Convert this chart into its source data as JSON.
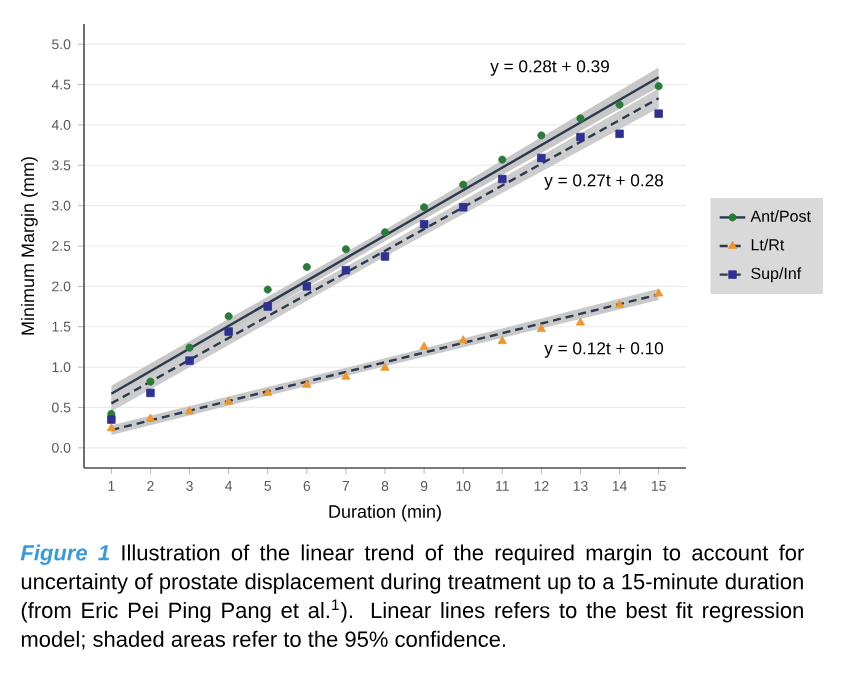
{
  "chart_data": {
    "type": "scatter",
    "xlabel": "Duration (min)",
    "ylabel": "Minimum Margin (mm)",
    "x": [
      1,
      2,
      3,
      4,
      5,
      6,
      7,
      8,
      9,
      10,
      11,
      12,
      13,
      14,
      15
    ],
    "series": [
      {
        "name": "Ant/Post",
        "marker": "circle",
        "color": "#2a7a3a",
        "values": [
          0.42,
          0.82,
          1.24,
          1.63,
          1.96,
          2.24,
          2.46,
          2.67,
          2.98,
          3.26,
          3.57,
          3.87,
          4.08,
          4.25,
          4.48
        ]
      },
      {
        "name": "Lt/Rt",
        "marker": "triangle",
        "color": "#f0962a",
        "values": [
          0.24,
          0.36,
          0.45,
          0.57,
          0.68,
          0.78,
          0.88,
          0.99,
          1.25,
          1.33,
          1.32,
          1.47,
          1.55,
          1.77,
          1.91
        ]
      },
      {
        "name": "Sup/Inf",
        "marker": "square",
        "color": "#2e3192",
        "values": [
          0.35,
          0.68,
          1.08,
          1.44,
          1.75,
          2.0,
          2.2,
          2.37,
          2.77,
          2.98,
          3.33,
          3.59,
          3.85,
          3.89,
          4.14
        ]
      },
      {
        "type": "line",
        "x": [
          1,
          8,
          15
        ],
        "color": "#2b3a4f",
        "line_style": "solid",
        "values": [
          0.67,
          2.63,
          4.59
        ],
        "lower": [
          0.57,
          2.56,
          4.47
        ],
        "upper": [
          0.77,
          2.7,
          4.71
        ]
      },
      {
        "type": "line",
        "x": [
          1,
          8,
          15
        ],
        "color": "#2b3a4f",
        "line_style": "dashed",
        "values": [
          0.22,
          1.06,
          1.9
        ],
        "lower": [
          0.16,
          1.01,
          1.83
        ],
        "upper": [
          0.28,
          1.11,
          1.97
        ]
      },
      {
        "type": "line",
        "x": [
          1,
          8,
          15
        ],
        "color": "#2b3a4f",
        "line_style": "dashed",
        "values": [
          0.55,
          2.44,
          4.33
        ],
        "lower": [
          0.45,
          2.37,
          4.21
        ],
        "upper": [
          0.65,
          2.51,
          4.45
        ]
      }
    ],
    "xlim": [
      0.3,
      15.7
    ],
    "xticks": [
      1,
      2,
      3,
      4,
      5,
      6,
      7,
      8,
      9,
      10,
      11,
      12,
      13,
      14,
      15
    ],
    "ylim": [
      -0.25,
      5.25
    ],
    "yticks": [
      {
        "value": 0,
        "label": "0.0"
      },
      {
        "value": 0.5,
        "label": "0.5"
      },
      {
        "value": 1,
        "label": "1.0"
      },
      {
        "value": 1.5,
        "label": "1.5"
      },
      {
        "value": 2,
        "label": "2.0"
      },
      {
        "value": 2.5,
        "label": "2.5"
      },
      {
        "value": 3,
        "label": "3.0"
      },
      {
        "value": 3.5,
        "label": "3.5"
      },
      {
        "value": 4,
        "label": "4.0"
      },
      {
        "value": 4.5,
        "label": "4.5"
      },
      {
        "value": 5,
        "label": "5.0"
      }
    ],
    "grid": "y",
    "legend": "right",
    "annotations": [
      "y = 0.28t + 0.39",
      "y = 0.27t + 0.28",
      "y = 0.12t + 0.10",
      "Figure 1",
      "Illustration of the linear trend of the required margin to account for uncertainty of prostate displacement during treatment up to a 15-minute duration (from Eric Pei Ping Pang et al.$^{1}$). Linear lines refers to the best fit regression model; shaded areas refer to the 95% confidence."
    ]
  }
}
